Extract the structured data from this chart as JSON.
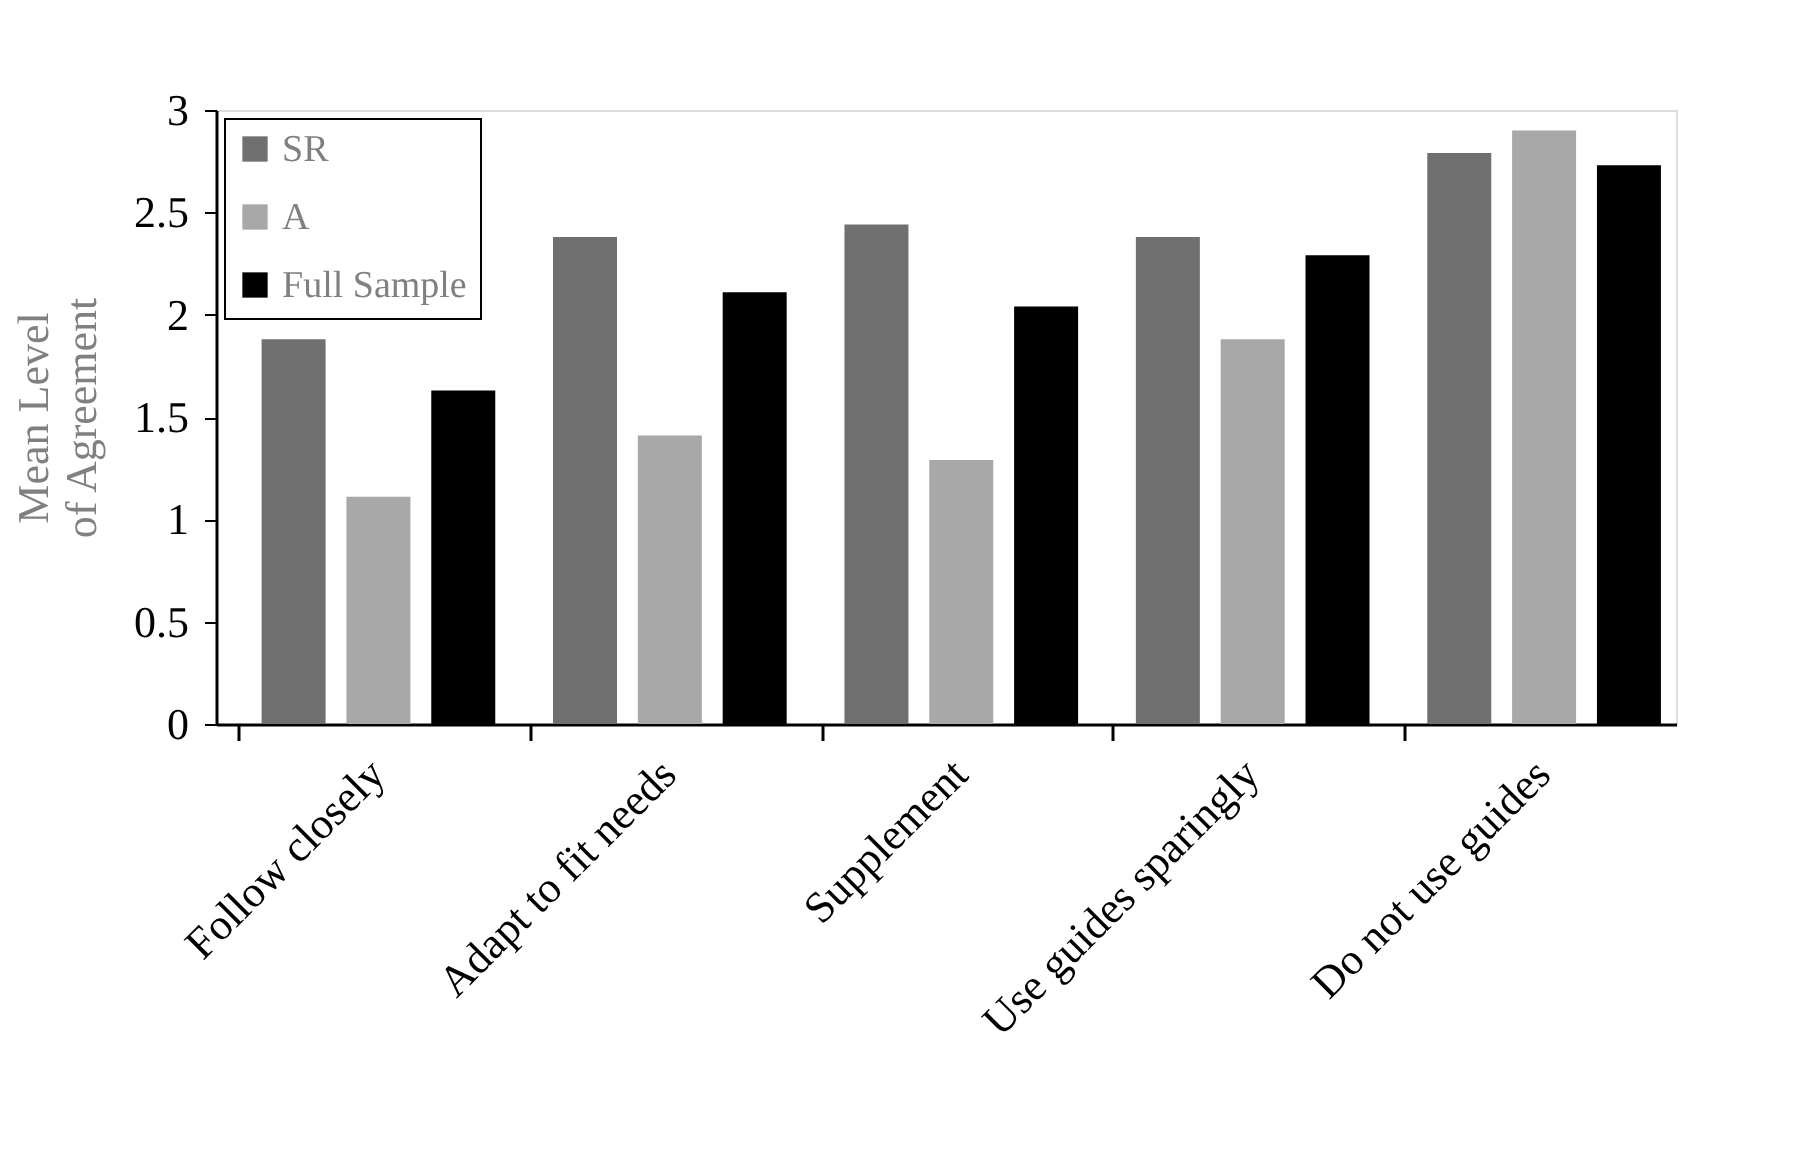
{
  "chart_data": {
    "type": "bar",
    "categories": [
      "Follow closely",
      "Adapt to fit needs",
      "Supplement",
      "Use guides sparingly",
      "Do not use guides"
    ],
    "series": [
      {
        "name": "SR",
        "color": "#707070",
        "values": [
          1.88,
          2.38,
          2.44,
          2.38,
          2.79
        ]
      },
      {
        "name": "A",
        "color": "#a8a8a8",
        "values": [
          1.11,
          1.41,
          1.29,
          1.88,
          2.9
        ]
      },
      {
        "name": "Full Sample",
        "color": "#000000",
        "values": [
          1.63,
          2.11,
          2.04,
          2.29,
          2.73
        ]
      }
    ],
    "ylabel": "Mean Level\nof Agreement",
    "ylim": [
      0,
      3
    ],
    "yticks": [
      0,
      0.5,
      1,
      1.5,
      2,
      2.5,
      3
    ],
    "grid": false,
    "legend": "top left"
  }
}
